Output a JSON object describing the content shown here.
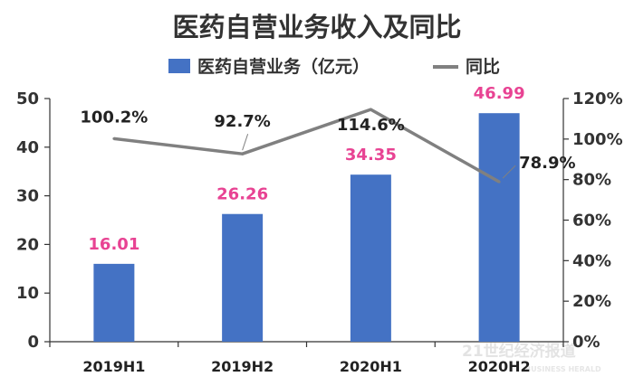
{
  "colors": {
    "bar": "#4472c4",
    "line": "#808080",
    "bar_label": "#e84393",
    "axis": "#333333"
  },
  "watermark": {
    "text": "21世纪经济报道",
    "sub": "BUSINESS HERALD"
  },
  "chart_data": {
    "type": "bar",
    "title": "医药自营业务收入及同比",
    "categories": [
      "2019H1",
      "2019H2",
      "2020H1",
      "2020H2"
    ],
    "series": [
      {
        "name": "医药自营业务（亿元）",
        "type": "bar",
        "axis": "left",
        "values": [
          16.01,
          26.26,
          34.35,
          46.99
        ],
        "labels": [
          "16.01",
          "26.26",
          "34.35",
          "46.99"
        ]
      },
      {
        "name": "同比",
        "type": "line",
        "axis": "right",
        "values": [
          100.2,
          92.7,
          114.6,
          78.9
        ],
        "labels": [
          "100.2%",
          "92.7%",
          "114.6%",
          "78.9%"
        ]
      }
    ],
    "y_left": {
      "range": [
        0,
        50
      ],
      "ticks": [
        "0",
        "10",
        "20",
        "30",
        "40",
        "50"
      ]
    },
    "y_right": {
      "range": [
        0,
        120
      ],
      "ticks": [
        "0%",
        "20%",
        "40%",
        "60%",
        "80%",
        "100%",
        "120%"
      ]
    },
    "grid": false,
    "legend": "top"
  }
}
